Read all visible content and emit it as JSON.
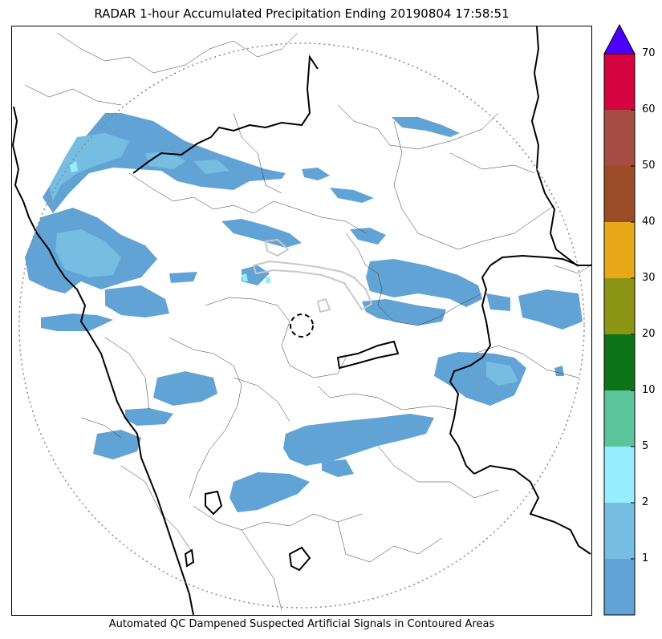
{
  "title": "RADAR 1-hour Accumulated Precipitation Ending 20190804 17:58:51",
  "caption": "Automated QC Dampened Suspected Artificial Signals in Contoured Areas",
  "colorbar": {
    "levels": [
      0,
      1,
      2,
      5,
      10,
      20,
      30,
      40,
      50,
      60,
      70
    ],
    "tick_labels": [
      "1",
      "2",
      "5",
      "10",
      "20",
      "30",
      "40",
      "50",
      "60",
      "70"
    ],
    "colors": [
      "#62a3d5",
      "#76bde2",
      "#94eefe",
      "#5bc49b",
      "#0d7419",
      "#8b9513",
      "#e8a918",
      "#9a4c26",
      "#a54c43",
      "#d5033f"
    ],
    "extend_color": "#4d00ff",
    "extend": "max"
  },
  "map": {
    "radar_range_ring": "dotted-circle",
    "radar_site_marker": "dashed-circle",
    "precip_light_color": "#62a3d5",
    "precip_moderate_color": "#76bde2",
    "precip_heavy_color": "#94eefe",
    "qc_contour_color": "#c8c8c8"
  }
}
